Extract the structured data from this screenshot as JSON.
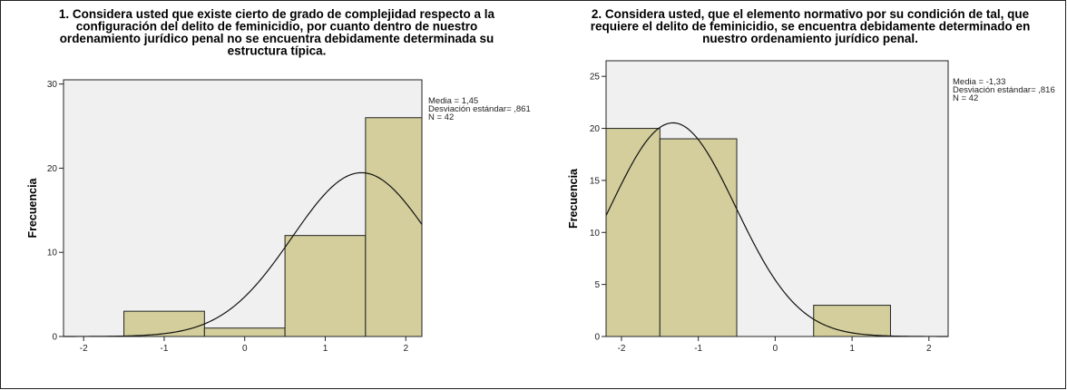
{
  "chart_data": [
    {
      "type": "bar",
      "title_lines": [
        "1. Considera usted que existe cierto de grado de complejidad respecto a la",
        "configuración del delito de feminicidio, por cuanto dentro de nuestro",
        "ordenamiento jurídico penal no se encuentra debidamente determinada su",
        "estructura típica."
      ],
      "ylabel": "Frecuencia",
      "xlim": [
        -2.25,
        2.2
      ],
      "ylim": [
        0,
        30.5
      ],
      "xticks": [
        -2,
        -1,
        0,
        1,
        2
      ],
      "yticks": [
        0,
        10,
        20,
        30
      ],
      "bars": [
        {
          "x": -1,
          "value": 3
        },
        {
          "x": 0,
          "value": 1
        },
        {
          "x": 1,
          "value": 12
        },
        {
          "x": 2,
          "value": 26
        }
      ],
      "bar_width": 1,
      "normal_curve": {
        "mean": 1.45,
        "sd": 0.861,
        "n": 42
      },
      "stats_lines": [
        "Media = 1,45",
        "Desviación estándar= ,861",
        "N = 42"
      ],
      "bar_color": "#d3ce9b",
      "plot_bg": "#f0f0f0"
    },
    {
      "type": "bar",
      "title_lines": [
        "2. Considera usted, que el elemento normativo por su condición de tal, que",
        "requiere el delito de feminicidio, se encuentra debidamente determinado en",
        "nuestro ordenamiento jurídico penal."
      ],
      "ylabel": "Frecuencia",
      "xlim": [
        -2.2,
        2.25
      ],
      "ylim": [
        0,
        26.5
      ],
      "xticks": [
        -2,
        -1,
        0,
        1,
        2
      ],
      "yticks": [
        0,
        5,
        10,
        15,
        20,
        25
      ],
      "bars": [
        {
          "x": -2,
          "value": 20
        },
        {
          "x": -1,
          "value": 19
        },
        {
          "x": 1,
          "value": 3
        }
      ],
      "bar_width": 1,
      "normal_curve": {
        "mean": -1.33,
        "sd": 0.816,
        "n": 42
      },
      "stats_lines": [
        "Media = -1,33",
        "Desviación estándar= ,816",
        "N = 42"
      ],
      "bar_color": "#d3ce9b",
      "plot_bg": "#f0f0f0"
    }
  ]
}
